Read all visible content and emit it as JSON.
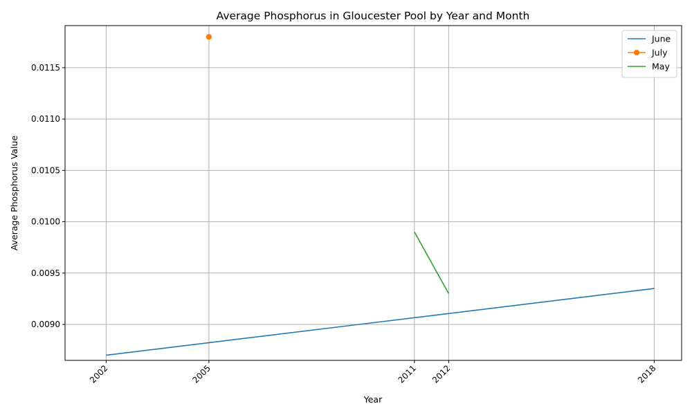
{
  "chart_data": {
    "type": "line",
    "title": "Average Phosphorus in Gloucester Pool by Year and Month",
    "xlabel": "Year",
    "ylabel": "Average Phosphorus Value",
    "x_ticks": [
      2002,
      2005,
      2011,
      2012,
      2018
    ],
    "y_ticks": [
      "0.0090",
      "0.0095",
      "0.0100",
      "0.0105",
      "0.0110",
      "0.0115"
    ],
    "xlim": [
      2000.8,
      2018.8
    ],
    "ylim": [
      0.00865,
      0.01191
    ],
    "grid": true,
    "legend_position": "top-right",
    "series": [
      {
        "name": "June",
        "color": "#1f77b4",
        "marker": false,
        "points": [
          [
            2002,
            0.0087
          ],
          [
            2018,
            0.00935
          ]
        ]
      },
      {
        "name": "July",
        "color": "#ff7f0e",
        "marker": true,
        "points": [
          [
            2005,
            0.0118
          ]
        ]
      },
      {
        "name": "May",
        "color": "#2ca02c",
        "marker": false,
        "points": [
          [
            2011,
            0.0099
          ],
          [
            2012,
            0.0093
          ]
        ]
      }
    ]
  }
}
